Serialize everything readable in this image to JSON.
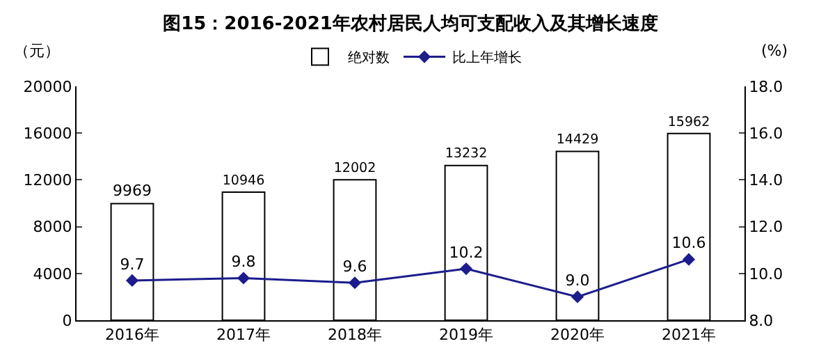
{
  "chart_data": {
    "type": "bar",
    "title": "图15：2016-2021年农村居民人均可支配收入及其增长速度",
    "ylabel": "（元）",
    "y2label": "(%)",
    "categories": [
      "2016年",
      "2017年",
      "2018年",
      "2019年",
      "2020年",
      "2021年"
    ],
    "series": [
      {
        "name": "绝对数",
        "color": "#ffffff",
        "values": [
          9969,
          10946,
          12002,
          13232,
          14429,
          15962
        ],
        "value_labels": [
          "9969",
          "10946",
          "12002",
          "13232",
          "14429",
          "15962"
        ]
      },
      {
        "name": "比上年增长",
        "type": "line",
        "axis": "y2",
        "color": "#1c1c8c",
        "marker": "diamond",
        "values": [
          9.7,
          9.8,
          9.6,
          10.2,
          9.0,
          10.6
        ],
        "value_labels": [
          "9.7",
          "9.8",
          "9.6",
          "10.2",
          "9.0",
          "10.6"
        ]
      }
    ],
    "ylim": [
      0,
      20000
    ],
    "yticks": [
      0,
      4000,
      8000,
      12000,
      16000,
      20000
    ],
    "y2lim": [
      8,
      18
    ],
    "y2ticks": [
      {
        "value": 8,
        "label": "8.0"
      },
      {
        "value": 10,
        "label": "10.0"
      },
      {
        "value": 12,
        "label": "12.0"
      },
      {
        "value": 14,
        "label": "14.0"
      },
      {
        "value": 16,
        "label": "16.0"
      },
      {
        "value": 18,
        "label": "18.0"
      }
    ],
    "legend": "top"
  }
}
